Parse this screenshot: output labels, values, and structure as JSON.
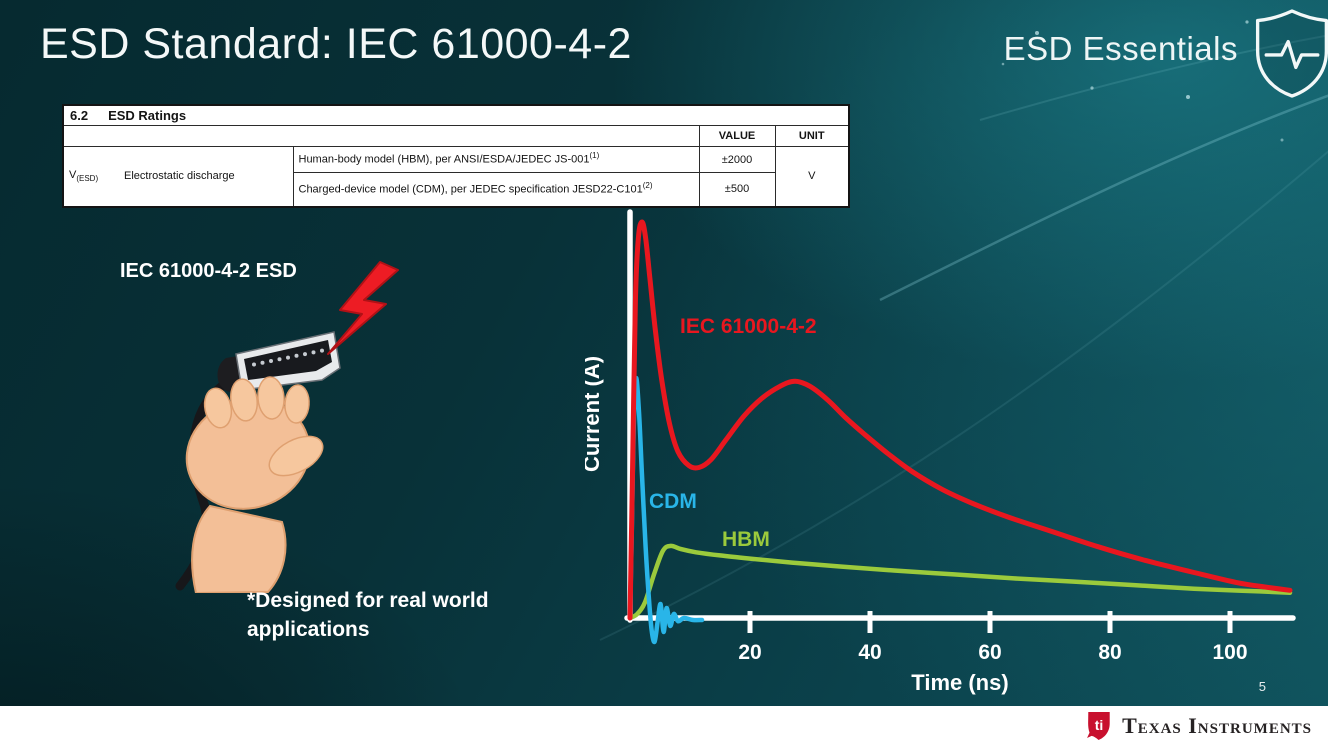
{
  "slide": {
    "title": "ESD Standard: IEC 61000-4-2",
    "series_brand": "ESD Essentials",
    "page_number": "5",
    "footer_brand": "Texas Instruments"
  },
  "icons": {
    "brand_shield": "shield-with-pulse-line",
    "esd_strike": "red-lightning-bolt",
    "illustration": "hand-holding-hdmi-cable",
    "footer_logo": "ti-red-bug"
  },
  "ratings_table": {
    "section_number": "6.2",
    "section_title": "ESD Ratings",
    "headers": {
      "value": "VALUE",
      "unit": "UNIT"
    },
    "symbol": {
      "base": "V",
      "sub": "(ESD)"
    },
    "parameter": "Electrostatic discharge",
    "rows": [
      {
        "description": "Human-body model (HBM), per ANSI/ESDA/JEDEC JS-001",
        "sup": "(1)",
        "value": "±2000"
      },
      {
        "description": "Charged-device model (CDM), per JEDEC specification JESD22-C101",
        "sup": "(2)",
        "value": "±500"
      }
    ],
    "unit": "V"
  },
  "left_panel": {
    "illustration_label": "IEC 61000-4-2 ESD",
    "note_line1": "*Designed for real world",
    "note_line2": "applications"
  },
  "chart_data": {
    "type": "line",
    "title": "",
    "xlabel": "Time (ns)",
    "ylabel": "Current (A)",
    "x_ticks": [
      20,
      40,
      60,
      80,
      100
    ],
    "xlim": [
      0,
      110
    ],
    "ylim": [
      0,
      105
    ],
    "grid": false,
    "legend": "inline-labels",
    "y_scale_note": "y axis has no numeric tick labels; series values are relative amplitudes with IEC peak = 100",
    "series": [
      {
        "name": "IEC 61000-4-2",
        "color": "#e8171f",
        "stroke_width": 5,
        "points": [
          [
            0,
            0
          ],
          [
            0.4,
            35
          ],
          [
            0.9,
            80
          ],
          [
            1.4,
            96
          ],
          [
            2,
            100
          ],
          [
            2.6,
            96
          ],
          [
            3.3,
            86
          ],
          [
            4.2,
            73
          ],
          [
            5.3,
            60
          ],
          [
            6.6,
            49
          ],
          [
            8,
            42
          ],
          [
            9.8,
            38.5
          ],
          [
            11.5,
            38
          ],
          [
            13.5,
            40
          ],
          [
            16,
            45
          ],
          [
            19,
            51
          ],
          [
            22,
            55.5
          ],
          [
            25,
            58.5
          ],
          [
            27.5,
            59.8
          ],
          [
            30,
            58.5
          ],
          [
            33,
            55
          ],
          [
            36,
            50.5
          ],
          [
            39,
            46.5
          ],
          [
            43,
            41.5
          ],
          [
            47,
            37
          ],
          [
            52,
            32.5
          ],
          [
            57,
            29
          ],
          [
            63,
            25.5
          ],
          [
            70,
            22
          ],
          [
            78,
            18
          ],
          [
            86,
            14.5
          ],
          [
            94,
            11.5
          ],
          [
            101,
            9
          ],
          [
            106,
            7.8
          ],
          [
            110,
            7
          ]
        ]
      },
      {
        "name": "CDM",
        "color": "#29b5e8",
        "stroke_width": 4.5,
        "points": [
          [
            0,
            0
          ],
          [
            0.3,
            22
          ],
          [
            0.6,
            47
          ],
          [
            1,
            60.5
          ],
          [
            1.5,
            52
          ],
          [
            2,
            36
          ],
          [
            2.6,
            18
          ],
          [
            3.1,
            6
          ],
          [
            3.6,
            -3
          ],
          [
            4.1,
            -6
          ],
          [
            4.6,
            -1
          ],
          [
            5.1,
            3.5
          ],
          [
            5.6,
            -3.5
          ],
          [
            6.1,
            2.5
          ],
          [
            6.7,
            -2
          ],
          [
            7.3,
            1
          ],
          [
            8,
            -0.8
          ],
          [
            9,
            0
          ],
          [
            10.5,
            -0.5
          ],
          [
            12,
            -0.5
          ]
        ]
      },
      {
        "name": "HBM",
        "color": "#9bca3c",
        "stroke_width": 4.5,
        "points": [
          [
            0,
            0
          ],
          [
            1.2,
            1
          ],
          [
            2.5,
            4
          ],
          [
            4,
            11
          ],
          [
            5.5,
            17
          ],
          [
            6.8,
            18.2
          ],
          [
            8.5,
            17.4
          ],
          [
            11,
            16.6
          ],
          [
            15,
            15.8
          ],
          [
            20,
            15
          ],
          [
            27,
            14
          ],
          [
            35,
            13
          ],
          [
            44,
            12
          ],
          [
            54,
            11
          ],
          [
            64,
            10
          ],
          [
            74,
            9.2
          ],
          [
            84,
            8.3
          ],
          [
            94,
            7.4
          ],
          [
            102,
            6.9
          ],
          [
            110,
            6.4
          ]
        ]
      }
    ]
  }
}
